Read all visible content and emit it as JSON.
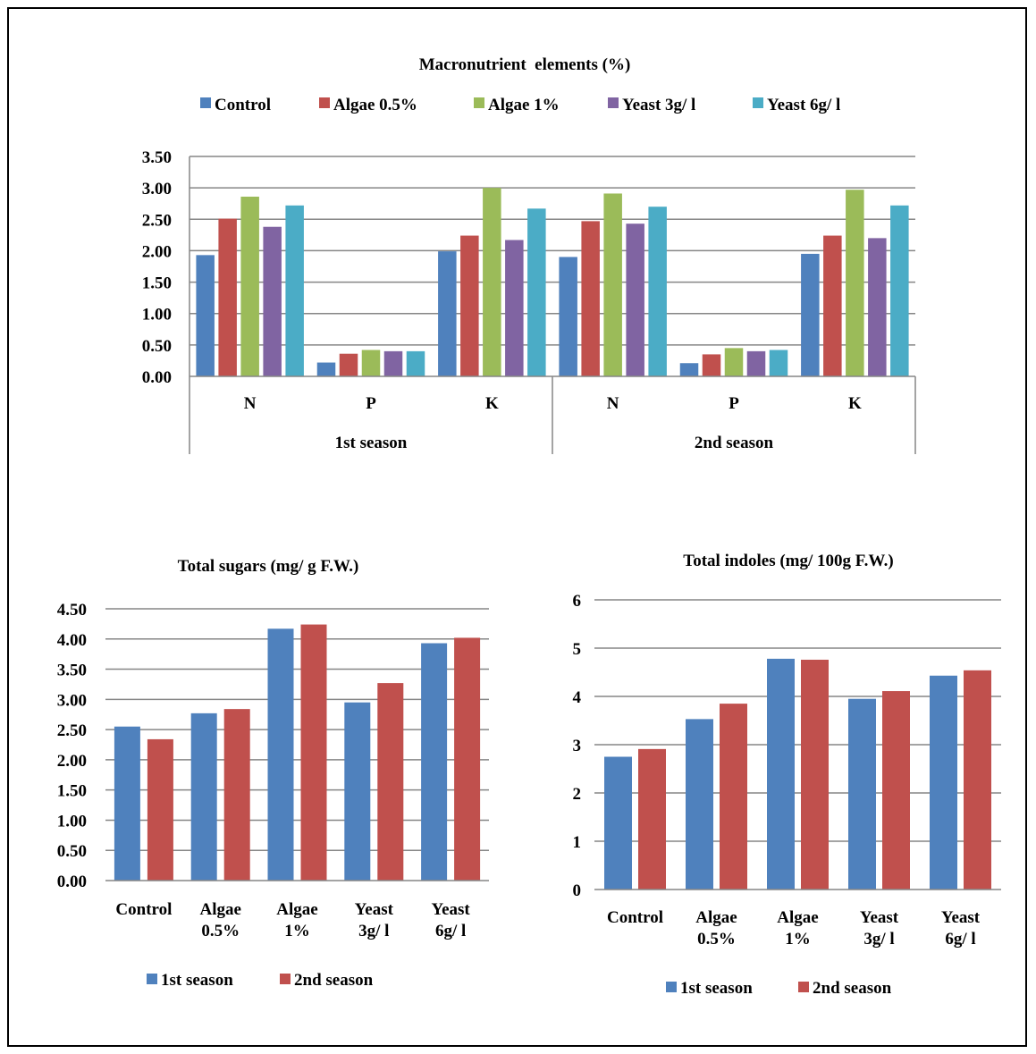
{
  "colors": {
    "blue": "#4f81bd",
    "red": "#c0504d",
    "green": "#9bbb59",
    "purple": "#8064a2",
    "teal": "#4bacc6",
    "grid": "#868686",
    "axis": "#868686"
  },
  "chart_data": [
    {
      "type": "bar",
      "title": "Macronutrient  elements (%)",
      "legend_position": "top",
      "groups": [
        {
          "label": "1st season",
          "categories": [
            "N",
            "P",
            "K"
          ]
        },
        {
          "label": "2nd season",
          "categories": [
            "N",
            "P",
            "K"
          ]
        }
      ],
      "series": [
        {
          "name": "Control",
          "color": "#4f81bd",
          "values": [
            1.93,
            0.22,
            1.99,
            1.9,
            0.21,
            1.95
          ]
        },
        {
          "name": "Algae 0.5%",
          "color": "#c0504d",
          "values": [
            2.51,
            0.36,
            2.24,
            2.47,
            0.35,
            2.24
          ]
        },
        {
          "name": "Algae 1%",
          "color": "#9bbb59",
          "values": [
            2.86,
            0.42,
            3.0,
            2.91,
            0.45,
            2.97
          ]
        },
        {
          "name": "Yeast 3g/ l",
          "color": "#8064a2",
          "values": [
            2.38,
            0.4,
            2.17,
            2.43,
            0.4,
            2.2
          ]
        },
        {
          "name": "Yeast 6g/ l",
          "color": "#4bacc6",
          "values": [
            2.72,
            0.4,
            2.67,
            2.7,
            0.42,
            2.72
          ]
        }
      ],
      "ylim": [
        0,
        3.5
      ],
      "yticks": [
        "0.00",
        "0.50",
        "1.00",
        "1.50",
        "2.00",
        "2.50",
        "3.00",
        "3.50"
      ],
      "grid": true
    },
    {
      "type": "bar",
      "title": "Total sugars (mg/ g F.W.)",
      "legend_position": "bottom",
      "categories": [
        [
          "Control"
        ],
        [
          "Algae",
          "0.5%"
        ],
        [
          "Algae",
          "1%"
        ],
        [
          "Yeast",
          "3g/ l"
        ],
        [
          "Yeast",
          "6g/ l"
        ]
      ],
      "series": [
        {
          "name": "1st season",
          "color": "#4f81bd",
          "values": [
            2.55,
            2.77,
            4.17,
            2.95,
            3.93
          ]
        },
        {
          "name": "2nd season",
          "color": "#c0504d",
          "values": [
            2.34,
            2.84,
            4.24,
            3.27,
            4.02
          ]
        }
      ],
      "ylim": [
        0,
        4.5
      ],
      "yticks": [
        "0.00",
        "0.50",
        "1.00",
        "1.50",
        "2.00",
        "2.50",
        "3.00",
        "3.50",
        "4.00",
        "4.50"
      ],
      "grid": true
    },
    {
      "type": "bar",
      "title": "Total indoles (mg/ 100g F.W.)",
      "legend_position": "bottom",
      "categories": [
        [
          "Control"
        ],
        [
          "Algae",
          "0.5%"
        ],
        [
          "Algae",
          "1%"
        ],
        [
          "Yeast",
          "3g/ l"
        ],
        [
          "Yeast",
          "6g/ l"
        ]
      ],
      "series": [
        {
          "name": "1st season",
          "color": "#4f81bd",
          "values": [
            2.75,
            3.53,
            4.78,
            3.95,
            4.43
          ]
        },
        {
          "name": "2nd season",
          "color": "#c0504d",
          "values": [
            2.91,
            3.85,
            4.76,
            4.11,
            4.54
          ]
        }
      ],
      "ylim": [
        0,
        6
      ],
      "yticks": [
        "0",
        "1",
        "2",
        "3",
        "4",
        "5",
        "6"
      ],
      "grid": true
    }
  ]
}
